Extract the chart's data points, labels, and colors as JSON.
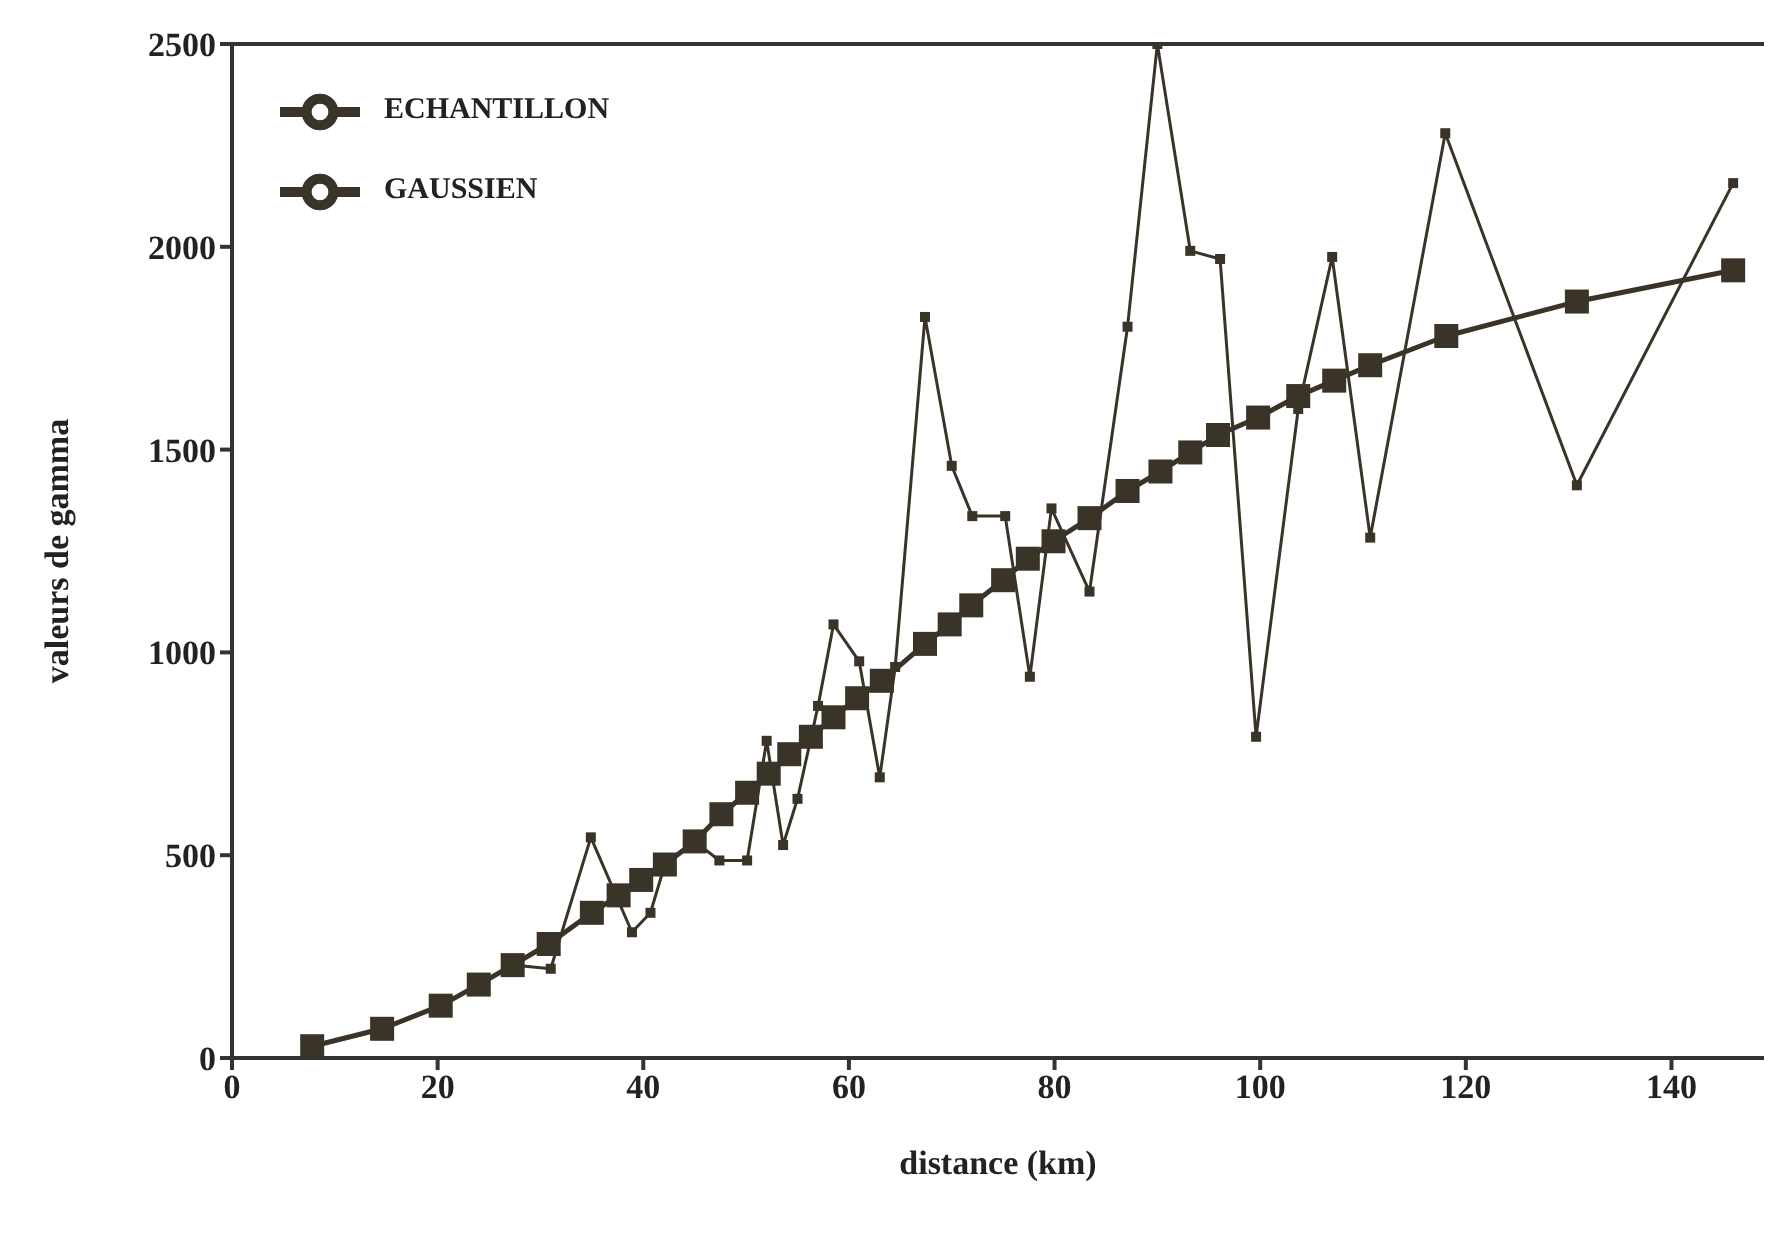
{
  "chart_data": {
    "type": "line",
    "xlabel": "distance (km)",
    "ylabel": "valeurs de gamma",
    "xlim": [
      0,
      149
    ],
    "xticks": [
      0,
      20,
      40,
      60,
      80,
      100,
      120,
      140
    ],
    "ylim": [
      0,
      2500
    ],
    "yticks": [
      0,
      500,
      1000,
      1500,
      2000,
      2500
    ],
    "grid": false,
    "legend": "top left",
    "marker": "square",
    "line_style": "solid",
    "series": [
      {
        "name": "ECHANTILLON",
        "color": "#3a3328",
        "x": [
          7.8,
          14.6,
          20.3,
          24,
          27.3,
          31,
          34.9,
          38.9,
          40.7,
          42.1,
          45,
          47.4,
          50.1,
          52,
          53.6,
          55,
          57,
          58.5,
          61,
          63,
          64.5,
          67.4,
          70,
          72,
          75.2,
          77.6,
          79.7,
          83.4,
          87.1,
          90,
          93.2,
          96.1,
          99.6,
          103.7,
          107,
          110.7,
          118,
          130.8,
          146
        ],
        "values": [
          29,
          72,
          129,
          181,
          229,
          220,
          544,
          310,
          358,
          477,
          534,
          487,
          487,
          782,
          525,
          639,
          868,
          1069,
          978,
          692,
          964,
          1827,
          1460,
          1336,
          1336,
          940,
          1355,
          1150,
          1803,
          2500,
          1990,
          1970,
          792,
          1600,
          1975,
          1283,
          2280,
          1412,
          2157
        ]
      },
      {
        "name": "GAUSSIEN",
        "color": "#3a3328",
        "x": [
          7.8,
          14.6,
          20.3,
          24,
          27.3,
          30.8,
          35,
          37.6,
          39.8,
          42.1,
          45,
          47.6,
          50.1,
          52.2,
          54.2,
          56.3,
          58.5,
          60.8,
          63.2,
          67.4,
          69.8,
          71.9,
          75,
          77.4,
          79.9,
          83.4,
          87.1,
          90.3,
          93.2,
          95.9,
          99.8,
          103.7,
          107.2,
          110.7,
          118.1,
          130.8,
          146
        ],
        "values": [
          29,
          72,
          129,
          181,
          229,
          281,
          358,
          401,
          439,
          477,
          534,
          601,
          654,
          701,
          749,
          792,
          840,
          887,
          930,
          1021,
          1069,
          1116,
          1178,
          1231,
          1274,
          1331,
          1398,
          1446,
          1493,
          1536,
          1579,
          1632,
          1670,
          1708,
          1780,
          1865,
          1942
        ]
      }
    ]
  }
}
